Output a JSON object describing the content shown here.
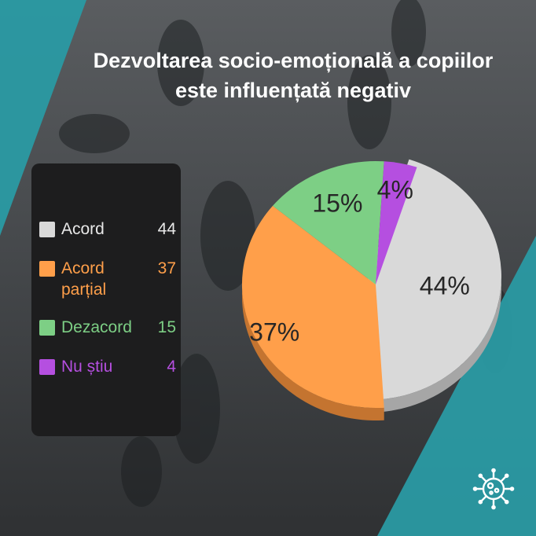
{
  "title": "Dezvoltarea socio-emoțională a copiilor este influențată negativ",
  "colors": {
    "accent_teal": "#2a9aa3",
    "panel": "#1d1d1e"
  },
  "icon": "virus-icon",
  "chart_data": {
    "type": "pie",
    "title": "Dezvoltarea socio-emoțională a copiilor este influențată negativ",
    "legend_placement": "left",
    "slices": [
      {
        "label": "Acord",
        "value": 44,
        "percent_label": "44%",
        "color": "#d9d9d9",
        "shade": "#a6a6a6"
      },
      {
        "label": "Acord parțial",
        "value": 37,
        "percent_label": "37%",
        "color": "#ff9f4a",
        "shade": "#c47430"
      },
      {
        "label": "Dezacord",
        "value": 15,
        "percent_label": "15%",
        "color": "#7dcf85",
        "shade": "#55a05c"
      },
      {
        "label": "Nu știu",
        "value": 4,
        "percent_label": "4%",
        "color": "#b54fe0",
        "shade": "#8232a8"
      }
    ]
  }
}
